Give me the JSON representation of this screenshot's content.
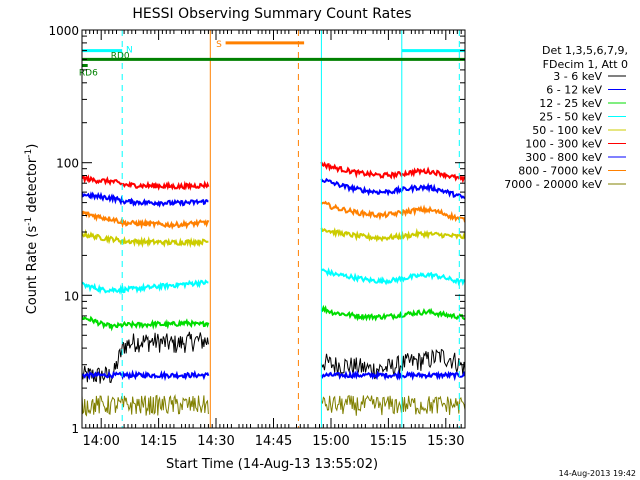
{
  "chart_data": {
    "type": "line",
    "title": "HESSI Observing Summary Count Rates",
    "xlabel": "Start Time (14-Aug-13 13:55:02)",
    "ylabel_main": "Count Rate (s",
    "ylabel_sup1": "-1",
    "ylabel_mid": " detector",
    "ylabel_sup2": "-1",
    "ylabel_end": ")",
    "yscale": "log",
    "ylim": [
      1,
      1000
    ],
    "x_unit": "minutes since 13:55:02",
    "xlim": [
      0,
      100
    ],
    "x_ticks": [
      {
        "label": "14:00",
        "value": 5
      },
      {
        "label": "14:15",
        "value": 20
      },
      {
        "label": "14:30",
        "value": 35
      },
      {
        "label": "14:45",
        "value": 50
      },
      {
        "label": "15:00",
        "value": 65
      },
      {
        "label": "15:15",
        "value": 80
      },
      {
        "label": "15:30",
        "value": 95
      }
    ],
    "y_ticks": [
      {
        "label": "1",
        "value": 1
      },
      {
        "label": "10",
        "value": 10
      },
      {
        "label": "100",
        "value": 100
      },
      {
        "label": "1000",
        "value": 1000
      }
    ],
    "legend_header": [
      "Det 1,3,5,6,7,9,",
      "FDecim 1, Att 0"
    ],
    "legend_position": "right",
    "footer": "14-Aug-2013 19:42",
    "segments": [
      [
        0,
        33
      ],
      [
        62.5,
        100
      ]
    ],
    "series": [
      {
        "name": "3 - 6 keV",
        "color": "#000000",
        "values": [
          2.5,
          2.5,
          2.5,
          2.5,
          4.2,
          4.5,
          4.5,
          4.5,
          4.4,
          4.3,
          4.5,
          4.6,
          4.5,
          3.2,
          3.0,
          3.0,
          2.9,
          2.8,
          2.8,
          2.9,
          3.1,
          3.2,
          3.3,
          3.5,
          3.3,
          2.8
        ]
      },
      {
        "name": "6 - 12 keV",
        "color": "#0000ff",
        "values": [
          2.5,
          2.5,
          2.5,
          2.5,
          2.5,
          2.5,
          2.5,
          2.5,
          2.5,
          2.5,
          2.5,
          2.5,
          2.5,
          2.5,
          2.5,
          2.5,
          2.5,
          2.5,
          2.5,
          2.5,
          2.5,
          2.5,
          2.5,
          2.5,
          2.5,
          2.5
        ]
      },
      {
        "name": "12 - 25 keV",
        "color": "#00dd00",
        "values": [
          6.8,
          6.5,
          6.0,
          5.8,
          6.0,
          6.0,
          6.0,
          6.1,
          6.0,
          6.1,
          6.2,
          6.0,
          6.2,
          8.0,
          7.4,
          7.2,
          7.0,
          6.9,
          6.9,
          7.0,
          7.2,
          7.4,
          7.5,
          7.2,
          7.0,
          6.8
        ]
      },
      {
        "name": "25 - 50 keV",
        "color": "#00ffff",
        "values": [
          12.0,
          11.5,
          11.0,
          11.0,
          11.0,
          11.2,
          11.4,
          11.6,
          11.8,
          12.0,
          12.2,
          12.4,
          12.5,
          15.5,
          14.5,
          14.0,
          13.5,
          13.0,
          12.8,
          13.0,
          13.5,
          14.0,
          14.3,
          13.8,
          13.0,
          12.5
        ]
      },
      {
        "name": "50 - 100 keV",
        "color": "#cccc00",
        "values": [
          29.0,
          28.0,
          27.0,
          26.5,
          25.5,
          25.5,
          25.3,
          25.2,
          25.0,
          25.0,
          25.2,
          25.3,
          25.5,
          32.0,
          30.0,
          29.0,
          28.0,
          27.5,
          27.0,
          27.5,
          28.0,
          29.0,
          29.0,
          28.5,
          28.0,
          27.5
        ]
      },
      {
        "name": "100 - 300 keV",
        "color": "#ff0000",
        "values": [
          77.0,
          74.0,
          73.0,
          72.0,
          68.0,
          67.5,
          67.0,
          67.0,
          66.5,
          66.0,
          66.5,
          67.0,
          68.0,
          98.0,
          92.0,
          88.0,
          84.0,
          82.0,
          80.0,
          81.0,
          83.0,
          86.0,
          86.0,
          83.0,
          78.0,
          74.0
        ]
      },
      {
        "name": "300 - 800 keV",
        "color": "#0000ff",
        "values": [
          58.0,
          56.0,
          55.0,
          54.0,
          51.0,
          50.5,
          50.0,
          50.0,
          49.8,
          49.5,
          50.0,
          50.5,
          51.0,
          75.0,
          70.0,
          66.0,
          63.0,
          61.0,
          60.0,
          61.0,
          63.0,
          65.0,
          65.0,
          62.0,
          58.0,
          54.0
        ]
      },
      {
        "name": "800 - 7000 keV",
        "color": "#ff8000",
        "values": [
          42.0,
          40.0,
          38.5,
          37.5,
          35.0,
          35.0,
          34.5,
          34.5,
          34.0,
          34.0,
          34.5,
          35.0,
          35.5,
          50.0,
          46.0,
          44.0,
          42.0,
          41.0,
          40.0,
          41.0,
          42.5,
          44.0,
          44.0,
          42.0,
          39.0,
          37.0
        ]
      },
      {
        "name": "7000 - 20000 keV",
        "color": "#808000",
        "values": [
          1.5,
          1.5,
          1.5,
          1.5,
          1.5,
          1.5,
          1.5,
          1.5,
          1.5,
          1.5,
          1.5,
          1.5,
          1.5,
          1.5,
          1.5,
          1.5,
          1.5,
          1.5,
          1.5,
          1.5,
          1.5,
          1.5,
          1.5,
          1.5,
          1.5,
          1.5
        ]
      }
    ],
    "state_lines": [
      {
        "label": "N",
        "color": "#00ffff"
      },
      {
        "label": "S",
        "color": "#ff8000"
      },
      {
        "label": "RD0",
        "color": "#008000"
      },
      {
        "label": "RD6",
        "color": "#008000"
      }
    ],
    "state_bars": [
      {
        "state": "N",
        "x": [
          0,
          10.5
        ],
        "value": 700
      },
      {
        "state": "N",
        "x": [
          83.5,
          100
        ],
        "value": 700
      },
      {
        "state": "S",
        "x": [
          37.5,
          58
        ],
        "value": 800
      },
      {
        "state": "RD0",
        "x": [
          0,
          100
        ],
        "value": 600
      },
      {
        "state": "RD6",
        "x": [
          0,
          1.5
        ],
        "value": 540
      }
    ],
    "state_marker_lines": [
      {
        "x": 0,
        "color": "#00ffff",
        "style": "solid"
      },
      {
        "x": 10.5,
        "color": "#00ffff",
        "style": "dashed"
      },
      {
        "x": 33.5,
        "color": "#ff8000",
        "style": "solid"
      },
      {
        "x": 56.5,
        "color": "#ff8000",
        "style": "dashed"
      },
      {
        "x": 62.5,
        "color": "#00ffff",
        "style": "solid"
      },
      {
        "x": 83.5,
        "color": "#00ffff",
        "style": "solid"
      },
      {
        "x": 98.5,
        "color": "#00ffff",
        "style": "dashed"
      }
    ]
  }
}
